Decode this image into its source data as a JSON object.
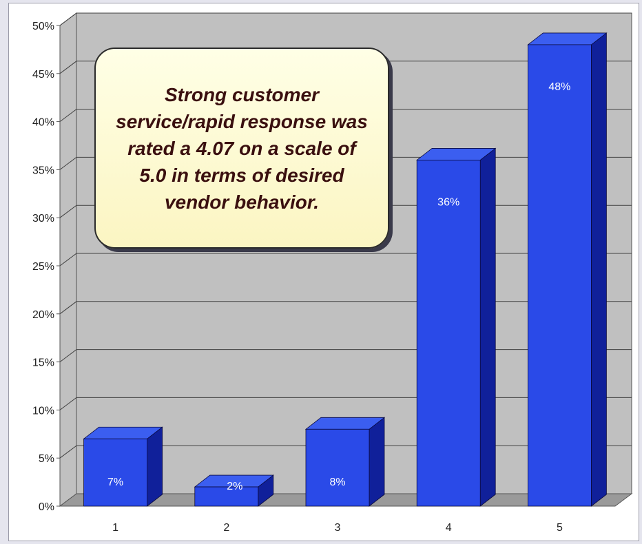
{
  "chart_data": {
    "type": "bar",
    "categories": [
      "1",
      "2",
      "3",
      "4",
      "5"
    ],
    "values": [
      7,
      2,
      8,
      36,
      48
    ],
    "value_labels": [
      "7%",
      "2%",
      "8%",
      "36%",
      "48%"
    ],
    "yticks": [
      "0%",
      "5%",
      "10%",
      "15%",
      "20%",
      "25%",
      "30%",
      "35%",
      "40%",
      "45%",
      "50%"
    ],
    "ylim": [
      0,
      50
    ],
    "grid": true,
    "legend": false,
    "style": "3d",
    "colors": {
      "bar_front": "#2a4ae8",
      "bar_side": "#10209a",
      "bar_top": "#3b5ef0",
      "wall": "#c0c0c0",
      "floor": "#9a9a9a",
      "gridline": "#404040"
    }
  },
  "callout": {
    "text": "Strong customer service/rapid response was rated a 4.07 on a scale of 5.0 in terms of desired vendor behavior."
  }
}
